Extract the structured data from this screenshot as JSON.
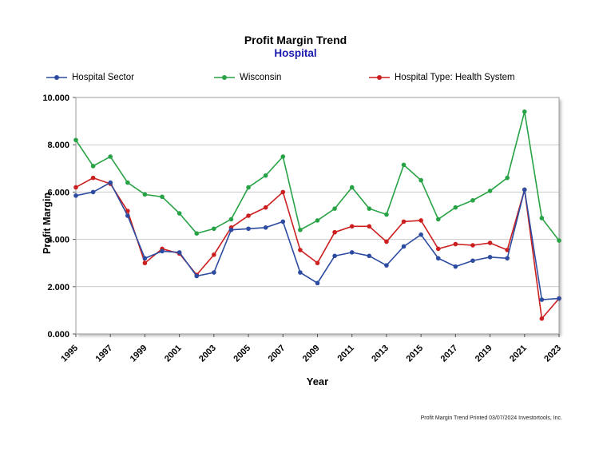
{
  "title": "Profit Margin Trend",
  "subtitle": "Hospital",
  "colors": {
    "subtitle": "#1a1aae",
    "gridline": "#c9c9c9",
    "plot_border": "#9a9a9a"
  },
  "chart_data": {
    "type": "line",
    "x": [
      1995,
      1996,
      1997,
      1998,
      1999,
      2000,
      2001,
      2002,
      2003,
      2004,
      2005,
      2006,
      2007,
      2008,
      2009,
      2010,
      2011,
      2012,
      2013,
      2014,
      2015,
      2016,
      2017,
      2018,
      2019,
      2020,
      2021,
      2022,
      2023
    ],
    "series": [
      {
        "name": "Hospital Sector",
        "color": "#2d4ba0",
        "values": [
          5.85,
          6.0,
          6.4,
          5.0,
          3.2,
          3.5,
          3.45,
          2.45,
          2.6,
          4.4,
          4.45,
          4.5,
          4.75,
          2.6,
          2.15,
          3.3,
          3.45,
          3.3,
          2.9,
          3.7,
          4.2,
          3.2,
          2.85,
          3.1,
          3.25,
          3.2,
          6.1,
          1.45,
          1.5
        ]
      },
      {
        "name": "Wisconsin",
        "color": "#27a244",
        "values": [
          8.2,
          7.1,
          7.5,
          6.4,
          5.9,
          5.8,
          5.1,
          4.25,
          4.45,
          4.85,
          6.2,
          6.7,
          7.5,
          4.4,
          4.8,
          5.3,
          6.2,
          5.3,
          5.05,
          7.15,
          6.5,
          4.85,
          5.35,
          5.65,
          6.05,
          6.6,
          9.4,
          4.9,
          3.95
        ]
      },
      {
        "name": "Hospital Type: Health System",
        "color": "#cc1f1f",
        "values": [
          6.2,
          6.6,
          6.35,
          5.2,
          3.0,
          3.6,
          3.4,
          2.5,
          3.35,
          4.5,
          5.0,
          5.35,
          6.0,
          3.55,
          3.0,
          4.3,
          4.55,
          4.55,
          3.9,
          4.75,
          4.8,
          3.6,
          3.8,
          3.75,
          3.85,
          3.55,
          6.1,
          0.65,
          1.5
        ]
      }
    ],
    "xlabel": "Year",
    "ylabel": "Profit Margin",
    "ylim": [
      0,
      10
    ],
    "ytick_step": 2,
    "ytick_decimals": 3,
    "xticks": [
      1995,
      1997,
      1999,
      2001,
      2003,
      2005,
      2007,
      2009,
      2011,
      2013,
      2015,
      2017,
      2019,
      2021,
      2023
    ],
    "grid": "horizontal",
    "legend_position": "top"
  },
  "footer": "Profit Margin Trend  Printed 03/07/2024  Investortools, Inc."
}
